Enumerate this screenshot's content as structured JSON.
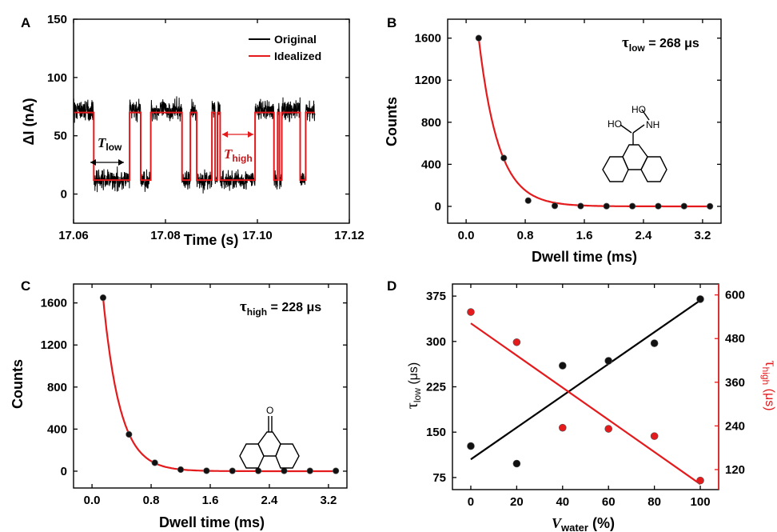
{
  "chart_data": [
    {
      "panel": "A",
      "type": "line",
      "xlabel": "Time (s)",
      "ylabel": "ΔI (nA)",
      "xlim": [
        17.06,
        17.12
      ],
      "ylim": [
        -25,
        150
      ],
      "xticks": [
        "17.06",
        "17.08",
        "17.10",
        "17.12"
      ],
      "yticks": [
        "0",
        "50",
        "100",
        "150"
      ],
      "legend": {
        "position": "top-right",
        "entries": [
          "Original",
          "Idealized"
        ]
      },
      "annotations": {
        "t_low": "T",
        "t_low_sub": "low",
        "t_high": "T",
        "t_high_sub": "high"
      },
      "series": [
        {
          "name": "Idealized",
          "color": "#e41a1c",
          "x": [
            17.0554,
            17.0644,
            17.0644,
            17.0722,
            17.0722,
            17.0746,
            17.0746,
            17.0768,
            17.0768,
            17.0836,
            17.0836,
            17.0854,
            17.0854,
            17.0868,
            17.0868,
            17.0901,
            17.0901,
            17.0908,
            17.0908,
            17.0913,
            17.0913,
            17.0919,
            17.0919,
            17.0995,
            17.0995,
            17.1036,
            17.1036,
            17.1044,
            17.1044,
            17.1048,
            17.1048,
            17.1053,
            17.1053,
            17.1093,
            17.1093,
            17.1105,
            17.1105,
            17.1125
          ],
          "y": [
            70,
            70,
            12,
            12,
            70,
            70,
            12,
            12,
            70,
            70,
            12,
            12,
            70,
            70,
            12,
            12,
            70,
            70,
            12,
            12,
            70,
            70,
            12,
            12,
            70,
            70,
            12,
            12,
            70,
            70,
            12,
            12,
            70,
            70,
            12,
            12,
            70,
            70
          ]
        },
        {
          "name": "Original",
          "color": "#000000",
          "noise_amplitude_nA": 8
        }
      ]
    },
    {
      "panel": "B",
      "type": "scatter",
      "xlabel": "Dwell time (ms)",
      "ylabel": "Counts",
      "xlim": [
        -0.25,
        3.45
      ],
      "ylim": [
        -160,
        1780
      ],
      "xticks": [
        "0.0",
        "0.8",
        "1.6",
        "2.4",
        "3.2"
      ],
      "yticks": [
        "0",
        "400",
        "800",
        "1200",
        "1600"
      ],
      "annotation": "τ",
      "annotation_sub": "low",
      "annotation_value": " = 268 μs",
      "molecule_labels": [
        "HO",
        "NH",
        "HO"
      ],
      "points": {
        "x": [
          0.17,
          0.51,
          0.84,
          1.2,
          1.55,
          1.9,
          2.25,
          2.6,
          2.95,
          3.3
        ],
        "y": [
          1600,
          460,
          55,
          5,
          3,
          2,
          2,
          2,
          2,
          1
        ]
      },
      "fit": {
        "color": "#e41a1c",
        "tau_ms": 0.268,
        "x0": 0.17,
        "A": 1600
      }
    },
    {
      "panel": "C",
      "type": "scatter",
      "xlabel": "Dwell time (ms)",
      "ylabel": "Counts",
      "xlim": [
        -0.25,
        3.45
      ],
      "ylim": [
        -160,
        1780
      ],
      "xticks": [
        "0.0",
        "0.8",
        "1.6",
        "2.4",
        "3.2"
      ],
      "yticks": [
        "0",
        "400",
        "800",
        "1200",
        "1600"
      ],
      "annotation": "τ",
      "annotation_sub": "high",
      "annotation_value": " = 228 μs",
      "molecule_labels": [
        "O"
      ],
      "points": {
        "x": [
          0.15,
          0.5,
          0.85,
          1.2,
          1.55,
          1.9,
          2.25,
          2.6,
          2.95,
          3.3
        ],
        "y": [
          1650,
          350,
          80,
          15,
          4,
          3,
          3,
          3,
          3,
          3
        ]
      },
      "fit": {
        "color": "#e41a1c",
        "tau_ms": 0.228,
        "x0": 0.15,
        "A": 1650
      }
    },
    {
      "panel": "D",
      "type": "scatter",
      "xlabel": "V",
      "xlabel_sub": "water",
      "xlabel_unit": " (%)",
      "ylabel_left": "τ",
      "ylabel_left_sub": "low",
      "ylabel_left_unit": " (μs)",
      "ylabel_right": "τ",
      "ylabel_right_sub": "high",
      "ylabel_right_unit": " (μs)",
      "xlim": [
        -8,
        108
      ],
      "ylim_left": [
        55,
        395
      ],
      "ylim_right": [
        65,
        630
      ],
      "xticks": [
        "0",
        "20",
        "40",
        "60",
        "80",
        "100"
      ],
      "yticks_left": [
        "75",
        "150",
        "225",
        "300",
        "375"
      ],
      "yticks_right": [
        "120",
        "240",
        "360",
        "480",
        "600"
      ],
      "series": [
        {
          "axis": "left",
          "color": "#000000",
          "x": [
            0,
            20,
            40,
            60,
            80,
            100
          ],
          "y": [
            127,
            98,
            260,
            268,
            297,
            370
          ],
          "fit": [
            [
              0,
              105
            ],
            [
              100,
              368
            ]
          ]
        },
        {
          "axis": "right",
          "color": "#e41a1c",
          "x": [
            0,
            20,
            40,
            60,
            80,
            100
          ],
          "y": [
            553,
            470,
            235,
            232,
            212,
            90
          ],
          "fit": [
            [
              0,
              522
            ],
            [
              100,
              80
            ]
          ]
        }
      ]
    }
  ]
}
